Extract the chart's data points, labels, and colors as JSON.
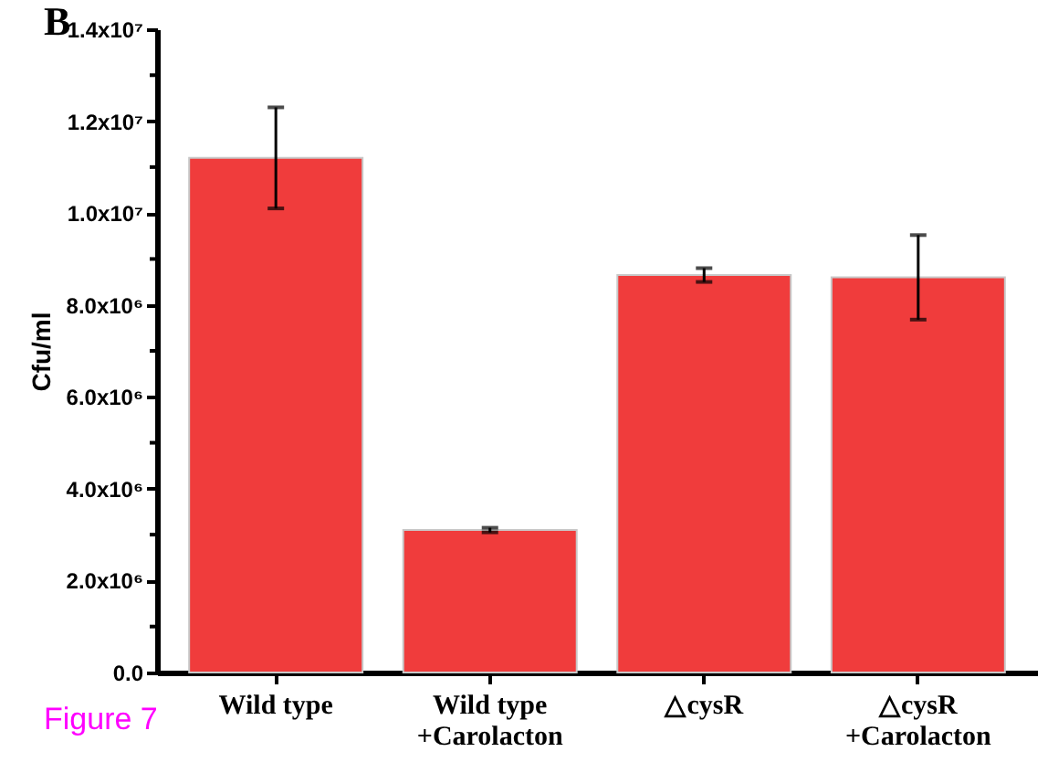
{
  "chart_data": {
    "type": "bar",
    "ylabel": "Cfu/ml",
    "categories": [
      "Wild type",
      "Wild type\n+Carolacton",
      "△cysR",
      "△cysR\n+Carolacton"
    ],
    "values": [
      11200000,
      3100000,
      8650000,
      8600000
    ],
    "errors": [
      1100000,
      50000,
      150000,
      920000
    ],
    "color": "#f03c3c",
    "ylim": [
      0,
      14000000
    ],
    "yticks": [
      {
        "value": 0,
        "label": "0.0"
      },
      {
        "value": 1000000,
        "label": null
      },
      {
        "value": 2000000,
        "label": "2.0x10⁶"
      },
      {
        "value": 3000000,
        "label": null
      },
      {
        "value": 4000000,
        "label": "4.0x10⁶"
      },
      {
        "value": 5000000,
        "label": null
      },
      {
        "value": 6000000,
        "label": "6.0x10⁶"
      },
      {
        "value": 7000000,
        "label": null
      },
      {
        "value": 8000000,
        "label": "8.0x10⁶"
      },
      {
        "value": 9000000,
        "label": null
      },
      {
        "value": 10000000,
        "label": "1.0x10⁷"
      },
      {
        "value": 11000000,
        "label": null
      },
      {
        "value": 12000000,
        "label": "1.2x10⁷"
      },
      {
        "value": 13000000,
        "label": null
      },
      {
        "value": 14000000,
        "label": "1.4x10⁷"
      }
    ],
    "grid": false,
    "annotations": [
      "B",
      "Figure 7"
    ]
  }
}
